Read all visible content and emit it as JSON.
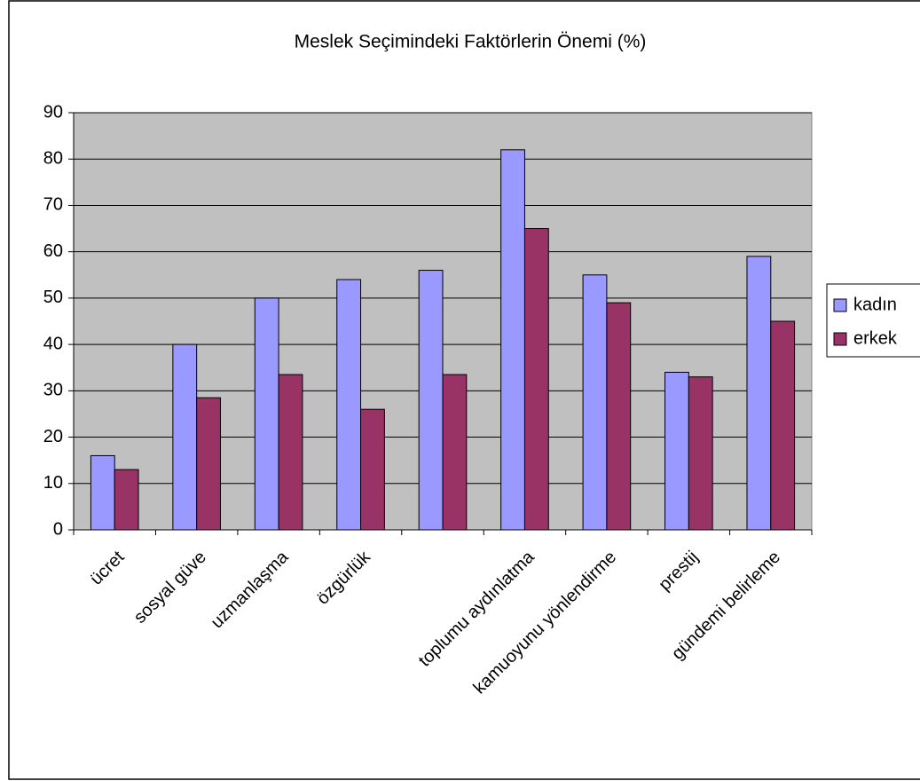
{
  "chart_data": {
    "type": "bar",
    "title": "Meslek Seçimindeki Faktörlerin Önemi (%)",
    "categories": [
      "ücret",
      "sosyal güve",
      "uzmanlaşma",
      "özgürlük",
      null,
      "toplumu aydınlatma",
      "kamuoyunu yönlendirme",
      "prestij",
      "gündemi belirleme"
    ],
    "series": [
      {
        "name": "kadın",
        "color": "#9999ff",
        "values": [
          16,
          40,
          50,
          54,
          56,
          82,
          55,
          34,
          59
        ]
      },
      {
        "name": "erkek",
        "color": "#993366",
        "values": [
          13,
          28.5,
          33.5,
          26,
          33.5,
          65,
          49,
          33,
          45
        ]
      }
    ],
    "ylim": [
      0,
      90
    ],
    "yticks": [
      0,
      10,
      20,
      30,
      40,
      50,
      60,
      70,
      80,
      90
    ],
    "grid": true,
    "legend": "right"
  }
}
